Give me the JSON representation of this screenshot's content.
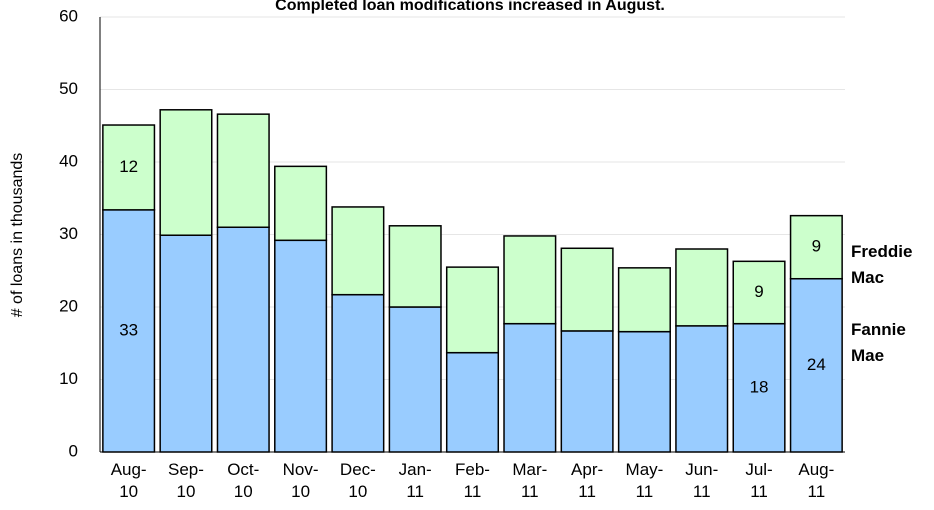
{
  "chart_data": {
    "type": "stacked-bar",
    "title": "Completed loan modifications increased in August.",
    "y_label": "# of loans in thousands",
    "categories": [
      "Aug-10",
      "Sep-10",
      "Oct-10",
      "Nov-10",
      "Dec-10",
      "Jan-11",
      "Feb-11",
      "Mar-11",
      "Apr-11",
      "May-11",
      "Jun-11",
      "Jul-11",
      "Aug-11"
    ],
    "series": [
      {
        "name": "Fannie Mae",
        "color": "#99ccff",
        "values": [
          33.4,
          29.9,
          31.0,
          29.2,
          21.7,
          20.0,
          13.7,
          17.7,
          16.7,
          16.6,
          17.4,
          17.7,
          23.9
        ],
        "value_labels": [
          "33",
          null,
          null,
          null,
          null,
          null,
          null,
          null,
          null,
          null,
          null,
          "18",
          "24"
        ]
      },
      {
        "name": "Freddie Mac",
        "color": "#ccffcc",
        "values": [
          11.7,
          17.3,
          15.6,
          10.2,
          12.1,
          11.2,
          11.8,
          12.1,
          11.4,
          8.8,
          10.6,
          8.6,
          8.7
        ],
        "value_labels": [
          "12",
          null,
          null,
          null,
          null,
          null,
          null,
          null,
          null,
          null,
          null,
          "9",
          "9"
        ]
      }
    ],
    "ylim": [
      0,
      60
    ],
    "yticks": [
      0,
      10,
      20,
      30,
      40,
      50,
      60
    ],
    "grid": true
  }
}
